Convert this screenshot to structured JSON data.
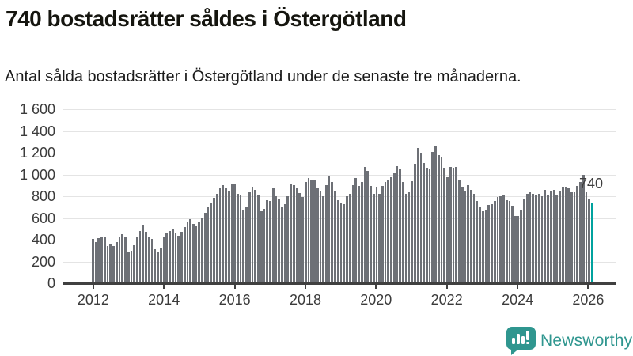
{
  "header": {
    "title": "740 bostadsrätter såldes i Östergötland",
    "subtitle": "Antal sålda bostadsrätter i Östergötland under de senaste tre månaderna."
  },
  "annotation": {
    "label": "740"
  },
  "branding": {
    "name": "Newsworthy",
    "color": "#2f968f",
    "icon": "bar-chart-speech-bubble-icon"
  },
  "chart_data": {
    "type": "bar",
    "title": "740 bostadsrätter såldes i Östergötland",
    "subtitle": "Antal sålda bostadsrätter i Östergötland under de senaste tre månaderna.",
    "frequency": "monthly",
    "start": "2012-01",
    "end": "2026-02",
    "values_note": "values estimated from pixels against gridlines; last value labeled 740 on chart",
    "values": [
      410,
      375,
      415,
      430,
      425,
      340,
      355,
      345,
      380,
      430,
      450,
      420,
      290,
      300,
      350,
      420,
      480,
      530,
      470,
      420,
      405,
      315,
      285,
      330,
      425,
      455,
      480,
      505,
      465,
      435,
      470,
      520,
      560,
      590,
      545,
      525,
      565,
      605,
      645,
      700,
      745,
      785,
      825,
      870,
      905,
      870,
      845,
      910,
      915,
      820,
      810,
      680,
      695,
      835,
      880,
      860,
      810,
      660,
      685,
      765,
      755,
      870,
      800,
      775,
      700,
      730,
      800,
      915,
      905,
      870,
      830,
      790,
      930,
      965,
      955,
      950,
      870,
      845,
      800,
      905,
      990,
      930,
      845,
      765,
      740,
      730,
      800,
      825,
      905,
      965,
      895,
      930,
      1070,
      1035,
      895,
      825,
      880,
      825,
      895,
      930,
      955,
      975,
      1010,
      1080,
      1045,
      930,
      825,
      835,
      940,
      1095,
      1245,
      1190,
      1105,
      1060,
      1045,
      1210,
      1260,
      1175,
      1165,
      1060,
      975,
      1070,
      1060,
      1070,
      955,
      880,
      845,
      905,
      860,
      825,
      755,
      695,
      660,
      680,
      720,
      730,
      755,
      790,
      800,
      810,
      765,
      755,
      705,
      615,
      620,
      680,
      780,
      825,
      835,
      820,
      810,
      825,
      800,
      860,
      810,
      845,
      860,
      810,
      845,
      880,
      885,
      870,
      835,
      840,
      895,
      930,
      1000,
      835,
      780,
      740
    ],
    "highlight_last": {
      "value": 740,
      "label": "740",
      "color": "#00a29e"
    },
    "bar_color": "#6d7076",
    "y_axis": {
      "label": "",
      "min": 0,
      "max": 1600,
      "step": 200,
      "tick_labels": [
        "1 600",
        "1 400",
        "1 200",
        "1 000",
        "800",
        "600",
        "400",
        "200",
        "0"
      ]
    },
    "x_axis": {
      "label": "",
      "tick_labels": [
        "2012",
        "2014",
        "2016",
        "2018",
        "2020",
        "2022",
        "2024",
        "2026"
      ],
      "months_between_ticks": 24
    },
    "grid": "horizontal",
    "legend": "none"
  }
}
